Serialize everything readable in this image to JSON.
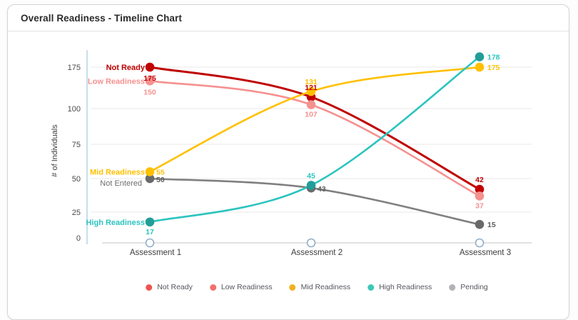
{
  "window": {
    "title": "Overall Readiness - Timeline Chart"
  },
  "chart_data": {
    "type": "line",
    "title": "Overall Readiness - Timeline Chart",
    "categories": [
      "Assessment 1",
      "Assessment 2",
      "Assessment 3"
    ],
    "series": [
      {
        "name": "Not Ready",
        "chart_label": "Not Ready",
        "values": [
          175,
          121,
          42
        ],
        "color": "#c00000",
        "legend_color": "#ee534f"
      },
      {
        "name": "Low Readiness",
        "chart_label": "Low Readiness",
        "values": [
          150,
          107,
          37
        ],
        "color": "#f5918f",
        "legend_color": "#f3706a"
      },
      {
        "name": "Mid Readiness",
        "chart_label": "Mid Readiness",
        "values": [
          55,
          131,
          175
        ],
        "color": "#ffc000",
        "legend_color": "#efb121"
      },
      {
        "name": "High Readiness",
        "chart_label": "High Readiness",
        "values": [
          17,
          45,
          178
        ],
        "color": "#2bc4be",
        "legend_color": "#3dc7b7"
      },
      {
        "name": "Pending",
        "chart_label": "Not Entered",
        "values": [
          50,
          43,
          15
        ],
        "color": "#808080",
        "legend_color": "#b2b2b7"
      }
    ],
    "xlabel": "",
    "ylabel": "# of Individuals",
    "y_ticks": [
      0,
      25,
      50,
      75,
      100,
      175
    ],
    "ylim": [
      0,
      190
    ],
    "grid": true,
    "legend_position": "bottom",
    "legend": [
      "Not Ready",
      "Low Readiness",
      "Mid Readiness",
      "High Readiness",
      "Pending"
    ]
  }
}
